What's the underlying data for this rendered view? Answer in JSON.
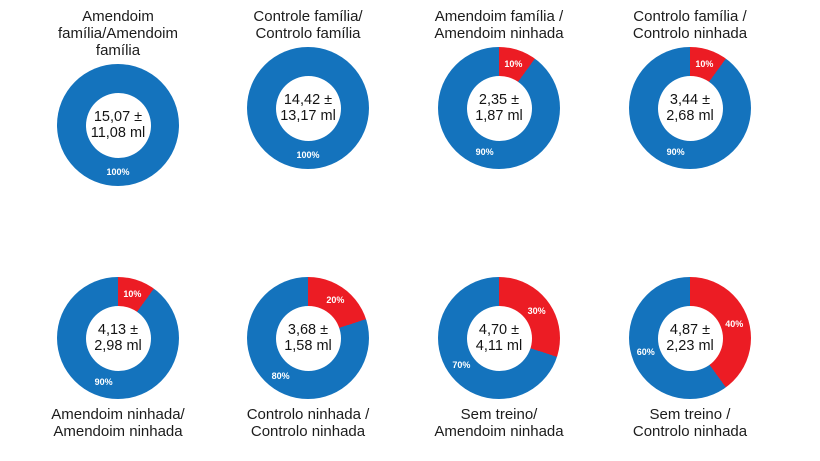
{
  "colors": {
    "blue": "#1473BD",
    "red": "#EC1C24",
    "percent_label_text": "#FFFFFF",
    "center_text": "#141414",
    "background": "#FFFFFF"
  },
  "chart_data": [
    {
      "type": "pie",
      "variant": "donut",
      "title": "Amendoim família/Amendoim\nfamília",
      "title_position": "top",
      "center_line1": "15,07 ±",
      "center_line2": "11,08 ml",
      "slices": [
        {
          "color": "blue",
          "pct": 100,
          "label": "100%"
        }
      ]
    },
    {
      "type": "pie",
      "variant": "donut",
      "title": "Controle família/\nControlo família",
      "title_position": "top",
      "center_line1": "14,42 ±",
      "center_line2": "13,17 ml",
      "slices": [
        {
          "color": "blue",
          "pct": 100,
          "label": "100%"
        }
      ]
    },
    {
      "type": "pie",
      "variant": "donut",
      "title": "Amendoim família /\nAmendoim ninhada",
      "title_position": "top",
      "center_line1": "2,35 ±",
      "center_line2": "1,87 ml",
      "slices": [
        {
          "color": "red",
          "pct": 10,
          "label": "10%"
        },
        {
          "color": "blue",
          "pct": 90,
          "label": "90%"
        }
      ]
    },
    {
      "type": "pie",
      "variant": "donut",
      "title": "Controlo família /\nControlo ninhada",
      "title_position": "top",
      "center_line1": "3,44 ±",
      "center_line2": "2,68 ml",
      "slices": [
        {
          "color": "red",
          "pct": 10,
          "label": "10%"
        },
        {
          "color": "blue",
          "pct": 90,
          "label": "90%"
        }
      ]
    },
    {
      "type": "pie",
      "variant": "donut",
      "title": "Amendoim ninhada/\nAmendoim ninhada",
      "title_position": "bottom",
      "center_line1": "4,13 ±",
      "center_line2": "2,98 ml",
      "slices": [
        {
          "color": "red",
          "pct": 10,
          "label": "10%"
        },
        {
          "color": "blue",
          "pct": 90,
          "label": "90%"
        }
      ]
    },
    {
      "type": "pie",
      "variant": "donut",
      "title": "Controlo ninhada /\nControlo ninhada",
      "title_position": "bottom",
      "center_line1": "3,68 ±",
      "center_line2": "1,58 ml",
      "slices": [
        {
          "color": "red",
          "pct": 20,
          "label": "20%"
        },
        {
          "color": "blue",
          "pct": 80,
          "label": "80%"
        }
      ]
    },
    {
      "type": "pie",
      "variant": "donut",
      "title": "Sem treino/\nAmendoim ninhada",
      "title_position": "bottom",
      "center_line1": "4,70 ±",
      "center_line2": "4,11 ml",
      "slices": [
        {
          "color": "red",
          "pct": 30,
          "label": "30%"
        },
        {
          "color": "blue",
          "pct": 70,
          "label": "70%"
        }
      ]
    },
    {
      "type": "pie",
      "variant": "donut",
      "title": "Sem treino /\nControlo ninhada",
      "title_position": "bottom",
      "center_line1": "4,87 ±",
      "center_line2": "2,23 ml",
      "slices": [
        {
          "color": "red",
          "pct": 40,
          "label": "40%"
        },
        {
          "color": "blue",
          "pct": 60,
          "label": "60%"
        }
      ]
    }
  ]
}
